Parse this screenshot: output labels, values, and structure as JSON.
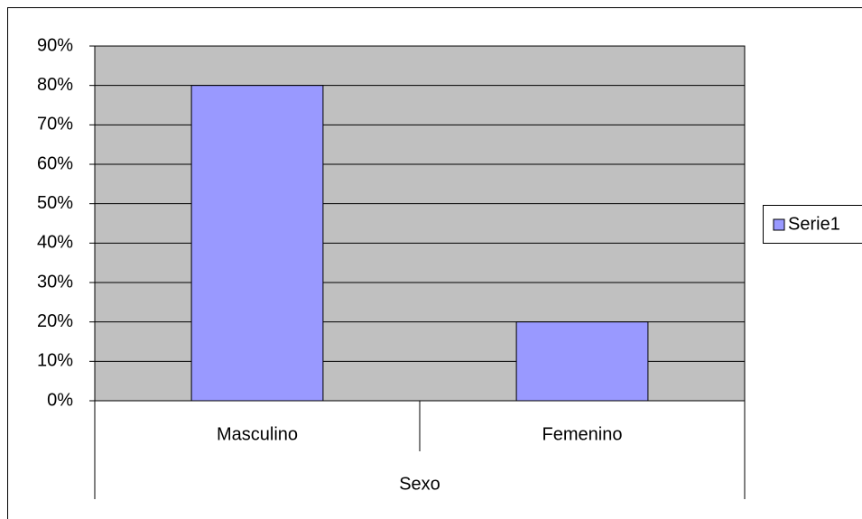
{
  "chart_data": {
    "type": "bar",
    "x_label": "Sexo",
    "categories": [
      "Masculino",
      "Femenino"
    ],
    "series": [
      {
        "name": "Serie1",
        "color": "#9999ff",
        "values": [
          80,
          20
        ]
      }
    ],
    "ylim": [
      0,
      90
    ],
    "yticks": [
      {
        "value": 0,
        "label": "0%"
      },
      {
        "value": 10,
        "label": "10%"
      },
      {
        "value": 20,
        "label": "20%"
      },
      {
        "value": 30,
        "label": "30%"
      },
      {
        "value": 40,
        "label": "40%"
      },
      {
        "value": 50,
        "label": "50%"
      },
      {
        "value": 60,
        "label": "60%"
      },
      {
        "value": 70,
        "label": "70%"
      },
      {
        "value": 80,
        "label": "80%"
      },
      {
        "value": 90,
        "label": "90%"
      }
    ],
    "grid": true,
    "plot_background": "#c0c0c0",
    "legend": "right"
  }
}
